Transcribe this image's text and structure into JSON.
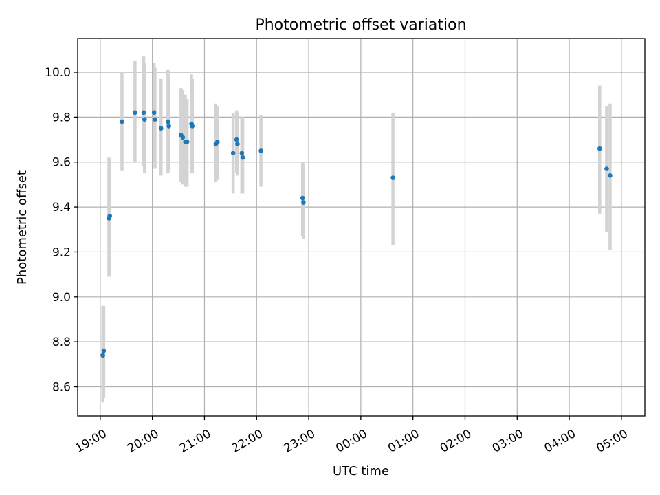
{
  "chart_data": {
    "type": "scatter",
    "title": "Photometric offset variation",
    "xlabel": "UTC time",
    "ylabel": "Photometric offset",
    "x_unit": "hours (UTC, continuing past midnight)",
    "xlim": [
      "18:34",
      "05:27"
    ],
    "ylim": [
      8.47,
      10.15
    ],
    "grid": true,
    "x_ticks": [
      "19:00",
      "20:00",
      "21:00",
      "22:00",
      "23:00",
      "00:00",
      "01:00",
      "02:00",
      "03:00",
      "04:00",
      "05:00"
    ],
    "y_ticks": [
      "8.6",
      "8.8",
      "9.0",
      "9.2",
      "9.4",
      "9.6",
      "9.8",
      "10.0"
    ],
    "colors": {
      "point": "#1f77b4",
      "errorbar": "#d3d3d3"
    },
    "points": [
      {
        "x": "19:03",
        "y": 8.74,
        "ylo": 8.53,
        "yhi": 8.96
      },
      {
        "x": "19:04",
        "y": 8.76,
        "ylo": 8.55,
        "yhi": 8.96
      },
      {
        "x": "19:10",
        "y": 9.35,
        "ylo": 9.09,
        "yhi": 9.62
      },
      {
        "x": "19:11",
        "y": 9.36,
        "ylo": 9.09,
        "yhi": 9.61
      },
      {
        "x": "19:25",
        "y": 9.78,
        "ylo": 9.56,
        "yhi": 10.0
      },
      {
        "x": "19:40",
        "y": 9.82,
        "ylo": 9.6,
        "yhi": 10.05
      },
      {
        "x": "19:50",
        "y": 9.82,
        "ylo": 9.58,
        "yhi": 10.07
      },
      {
        "x": "19:51",
        "y": 9.79,
        "ylo": 9.55,
        "yhi": 10.04
      },
      {
        "x": "20:02",
        "y": 9.82,
        "ylo": 9.6,
        "yhi": 10.04
      },
      {
        "x": "20:03",
        "y": 9.79,
        "ylo": 9.57,
        "yhi": 10.02
      },
      {
        "x": "20:10",
        "y": 9.75,
        "ylo": 9.54,
        "yhi": 9.97
      },
      {
        "x": "20:18",
        "y": 9.78,
        "ylo": 9.55,
        "yhi": 10.01
      },
      {
        "x": "20:19",
        "y": 9.76,
        "ylo": 9.56,
        "yhi": 9.98
      },
      {
        "x": "20:33",
        "y": 9.72,
        "ylo": 9.51,
        "yhi": 9.93
      },
      {
        "x": "20:35",
        "y": 9.71,
        "ylo": 9.5,
        "yhi": 9.92
      },
      {
        "x": "20:38",
        "y": 9.69,
        "ylo": 9.49,
        "yhi": 9.9
      },
      {
        "x": "20:40",
        "y": 9.69,
        "ylo": 9.49,
        "yhi": 9.88
      },
      {
        "x": "20:45",
        "y": 9.77,
        "ylo": 9.55,
        "yhi": 9.99
      },
      {
        "x": "20:46",
        "y": 9.76,
        "ylo": 9.55,
        "yhi": 9.97
      },
      {
        "x": "21:13",
        "y": 9.68,
        "ylo": 9.51,
        "yhi": 9.86
      },
      {
        "x": "21:15",
        "y": 9.69,
        "ylo": 9.52,
        "yhi": 9.85
      },
      {
        "x": "21:33",
        "y": 9.64,
        "ylo": 9.46,
        "yhi": 9.82
      },
      {
        "x": "21:37",
        "y": 9.7,
        "ylo": 9.55,
        "yhi": 9.83
      },
      {
        "x": "21:38",
        "y": 9.68,
        "ylo": 9.54,
        "yhi": 9.82
      },
      {
        "x": "21:43",
        "y": 9.64,
        "ylo": 9.46,
        "yhi": 9.8
      },
      {
        "x": "21:44",
        "y": 9.62,
        "ylo": 9.46,
        "yhi": 9.8
      },
      {
        "x": "22:05",
        "y": 9.65,
        "ylo": 9.49,
        "yhi": 9.81
      },
      {
        "x": "22:53",
        "y": 9.44,
        "ylo": 9.27,
        "yhi": 9.6
      },
      {
        "x": "22:54",
        "y": 9.42,
        "ylo": 9.26,
        "yhi": 9.59
      },
      {
        "x": "00:37",
        "y": 9.53,
        "ylo": 9.23,
        "yhi": 9.82
      },
      {
        "x": "04:35",
        "y": 9.66,
        "ylo": 9.37,
        "yhi": 9.94
      },
      {
        "x": "04:43",
        "y": 9.57,
        "ylo": 9.29,
        "yhi": 9.85
      },
      {
        "x": "04:47",
        "y": 9.54,
        "ylo": 9.21,
        "yhi": 9.86
      }
    ]
  }
}
